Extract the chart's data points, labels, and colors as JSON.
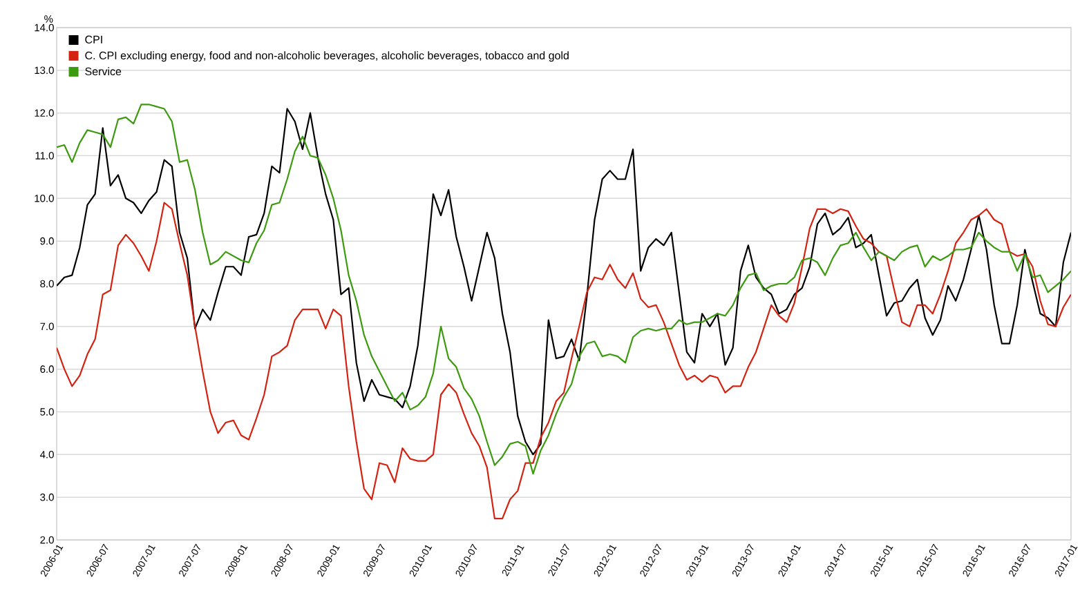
{
  "chart_data": {
    "type": "line",
    "ylabel": "%",
    "x": [
      "2006-01",
      "2006-02",
      "2006-03",
      "2006-04",
      "2006-05",
      "2006-06",
      "2006-07",
      "2006-08",
      "2006-09",
      "2006-10",
      "2006-11",
      "2006-12",
      "2007-01",
      "2007-02",
      "2007-03",
      "2007-04",
      "2007-05",
      "2007-06",
      "2007-07",
      "2007-08",
      "2007-09",
      "2007-10",
      "2007-11",
      "2007-12",
      "2008-01",
      "2008-02",
      "2008-03",
      "2008-04",
      "2008-05",
      "2008-06",
      "2008-07",
      "2008-08",
      "2008-09",
      "2008-10",
      "2008-11",
      "2008-12",
      "2009-01",
      "2009-02",
      "2009-03",
      "2009-04",
      "2009-05",
      "2009-06",
      "2009-07",
      "2009-08",
      "2009-09",
      "2009-10",
      "2009-11",
      "2009-12",
      "2010-01",
      "2010-02",
      "2010-03",
      "2010-04",
      "2010-05",
      "2010-06",
      "2010-07",
      "2010-08",
      "2010-09",
      "2010-10",
      "2010-11",
      "2010-12",
      "2011-01",
      "2011-02",
      "2011-03",
      "2011-04",
      "2011-05",
      "2011-06",
      "2011-07",
      "2011-08",
      "2011-09",
      "2011-10",
      "2011-11",
      "2011-12",
      "2012-01",
      "2012-02",
      "2012-03",
      "2012-04",
      "2012-05",
      "2012-06",
      "2012-07",
      "2012-08",
      "2012-09",
      "2012-10",
      "2012-11",
      "2012-12",
      "2013-01",
      "2013-02",
      "2013-03",
      "2013-04",
      "2013-05",
      "2013-06",
      "2013-07",
      "2013-08",
      "2013-09",
      "2013-10",
      "2013-11",
      "2013-12",
      "2014-01",
      "2014-02",
      "2014-03",
      "2014-04",
      "2014-05",
      "2014-06",
      "2014-07",
      "2014-08",
      "2014-09",
      "2014-10",
      "2014-11",
      "2014-12",
      "2015-01",
      "2015-02",
      "2015-03",
      "2015-04",
      "2015-05",
      "2015-06",
      "2015-07",
      "2015-08",
      "2015-09",
      "2015-10",
      "2015-11",
      "2015-12",
      "2016-01",
      "2016-02",
      "2016-03",
      "2016-04",
      "2016-05",
      "2016-06",
      "2016-07",
      "2016-08",
      "2016-09",
      "2016-10",
      "2016-11",
      "2016-12",
      "2017-01"
    ],
    "series": [
      {
        "name": "CPI",
        "color": "#000000",
        "values": [
          7.95,
          8.15,
          8.2,
          8.85,
          9.85,
          10.1,
          11.65,
          10.3,
          10.55,
          10.0,
          9.9,
          9.65,
          9.95,
          10.15,
          10.9,
          10.75,
          9.2,
          8.6,
          6.95,
          7.4,
          7.15,
          7.8,
          8.4,
          8.4,
          8.2,
          9.1,
          9.15,
          9.65,
          10.75,
          10.6,
          12.1,
          11.8,
          11.15,
          12.0,
          10.95,
          10.1,
          9.5,
          7.75,
          7.9,
          6.15,
          5.25,
          5.75,
          5.4,
          5.35,
          5.3,
          5.1,
          5.6,
          6.55,
          8.2,
          10.1,
          9.6,
          10.2,
          9.1,
          8.4,
          7.6,
          8.4,
          9.2,
          8.6,
          7.3,
          6.4,
          4.9,
          4.3,
          4.0,
          4.25,
          7.15,
          6.25,
          6.3,
          6.7,
          6.2,
          7.7,
          9.5,
          10.45,
          10.65,
          10.45,
          10.45,
          11.15,
          8.3,
          8.85,
          9.05,
          8.9,
          9.2,
          7.8,
          6.4,
          6.15,
          7.3,
          7.0,
          7.3,
          6.1,
          6.5,
          8.3,
          8.9,
          8.15,
          7.9,
          7.75,
          7.3,
          7.4,
          7.75,
          7.9,
          8.4,
          9.4,
          9.65,
          9.15,
          9.3,
          9.55,
          8.85,
          8.95,
          9.15,
          8.2,
          7.25,
          7.55,
          7.6,
          7.9,
          8.1,
          7.2,
          6.8,
          7.15,
          7.95,
          7.6,
          8.1,
          8.8,
          9.6,
          8.8,
          7.5,
          6.6,
          6.6,
          7.5,
          8.8,
          8.05,
          7.3,
          7.2,
          7.0,
          8.5,
          9.2
        ]
      },
      {
        "name": "C. CPI excluding energy, food and non-alcoholic beverages, alcoholic beverages, tobacco and gold",
        "color": "#d42211",
        "values": [
          6.5,
          6.0,
          5.6,
          5.85,
          6.35,
          6.7,
          7.75,
          7.85,
          8.9,
          9.15,
          8.95,
          8.65,
          8.3,
          9.0,
          9.9,
          9.75,
          8.95,
          8.2,
          7.0,
          5.95,
          5.0,
          4.5,
          4.75,
          4.8,
          4.45,
          4.35,
          4.85,
          5.4,
          6.3,
          6.4,
          6.55,
          7.15,
          7.4,
          7.4,
          7.4,
          6.95,
          7.4,
          7.25,
          5.6,
          4.3,
          3.2,
          2.95,
          3.8,
          3.75,
          3.35,
          4.15,
          3.9,
          3.85,
          3.85,
          4.0,
          5.4,
          5.65,
          5.45,
          4.95,
          4.5,
          4.2,
          3.7,
          2.5,
          2.5,
          2.95,
          3.15,
          3.8,
          3.8,
          4.4,
          4.75,
          5.25,
          5.45,
          6.25,
          7.0,
          7.8,
          8.15,
          8.1,
          8.45,
          8.1,
          7.9,
          8.25,
          7.65,
          7.45,
          7.5,
          7.1,
          6.6,
          6.1,
          5.75,
          5.85,
          5.7,
          5.85,
          5.8,
          5.45,
          5.6,
          5.6,
          6.05,
          6.4,
          6.95,
          7.5,
          7.25,
          7.1,
          7.55,
          8.4,
          9.3,
          9.75,
          9.75,
          9.65,
          9.75,
          9.7,
          9.35,
          9.05,
          8.95,
          8.75,
          8.65,
          7.85,
          7.1,
          7.0,
          7.5,
          7.5,
          7.3,
          7.75,
          8.3,
          8.95,
          9.2,
          9.5,
          9.6,
          9.75,
          9.5,
          9.4,
          8.75,
          8.65,
          8.7,
          8.4,
          7.6,
          7.05,
          7.0,
          7.45,
          7.75
        ]
      },
      {
        "name": "Service",
        "color": "#3c9a0e",
        "values": [
          11.2,
          11.25,
          10.85,
          11.3,
          11.6,
          11.55,
          11.5,
          11.2,
          11.85,
          11.9,
          11.75,
          12.2,
          12.2,
          12.15,
          12.1,
          11.8,
          10.85,
          10.9,
          10.2,
          9.2,
          8.45,
          8.55,
          8.75,
          8.65,
          8.55,
          8.5,
          8.95,
          9.25,
          9.85,
          9.9,
          10.45,
          11.1,
          11.45,
          11.0,
          10.95,
          10.55,
          10.0,
          9.25,
          8.2,
          7.6,
          6.8,
          6.3,
          5.95,
          5.6,
          5.25,
          5.45,
          5.05,
          5.15,
          5.35,
          5.9,
          7.0,
          6.25,
          6.05,
          5.55,
          5.3,
          4.9,
          4.3,
          3.75,
          3.95,
          4.25,
          4.3,
          4.2,
          3.55,
          4.1,
          4.45,
          4.95,
          5.35,
          5.65,
          6.3,
          6.6,
          6.65,
          6.3,
          6.35,
          6.3,
          6.15,
          6.75,
          6.9,
          6.95,
          6.9,
          6.95,
          6.95,
          7.15,
          7.05,
          7.1,
          7.1,
          7.2,
          7.3,
          7.25,
          7.5,
          7.9,
          8.2,
          8.25,
          7.85,
          7.95,
          8.0,
          8.0,
          8.15,
          8.55,
          8.6,
          8.5,
          8.2,
          8.6,
          8.9,
          8.95,
          9.2,
          8.85,
          8.55,
          8.75,
          8.65,
          8.55,
          8.75,
          8.85,
          8.9,
          8.4,
          8.65,
          8.55,
          8.65,
          8.8,
          8.8,
          8.85,
          9.2,
          9.0,
          8.85,
          8.75,
          8.75,
          8.3,
          8.7,
          8.15,
          8.2,
          7.8,
          7.95,
          8.1,
          8.3
        ]
      }
    ],
    "xlim": [
      "2006-01",
      "2017-01"
    ],
    "xticks": [
      "2006-01",
      "2006-07",
      "2007-01",
      "2007-07",
      "2008-01",
      "2008-07",
      "2009-01",
      "2009-07",
      "2010-01",
      "2010-07",
      "2011-01",
      "2011-07",
      "2012-01",
      "2012-07",
      "2013-01",
      "2013-07",
      "2014-01",
      "2014-07",
      "2015-01",
      "2015-07",
      "2016-01",
      "2016-07",
      "2017-01"
    ],
    "ylim": [
      2,
      14
    ],
    "yticks": [
      {
        "value": 2,
        "label": "2.0"
      },
      {
        "value": 3,
        "label": "3.0"
      },
      {
        "value": 4,
        "label": "4.0"
      },
      {
        "value": 5,
        "label": "5.0"
      },
      {
        "value": 6,
        "label": "6.0"
      },
      {
        "value": 7,
        "label": "7.0"
      },
      {
        "value": 8,
        "label": "8.0"
      },
      {
        "value": 9,
        "label": "9.0"
      },
      {
        "value": 10,
        "label": "10.0"
      },
      {
        "value": 11,
        "label": "11.0"
      },
      {
        "value": 12,
        "label": "12.0"
      },
      {
        "value": 13,
        "label": "13.0"
      },
      {
        "value": 14,
        "label": "14.0"
      }
    ],
    "grid": "y",
    "legend": "top left"
  }
}
